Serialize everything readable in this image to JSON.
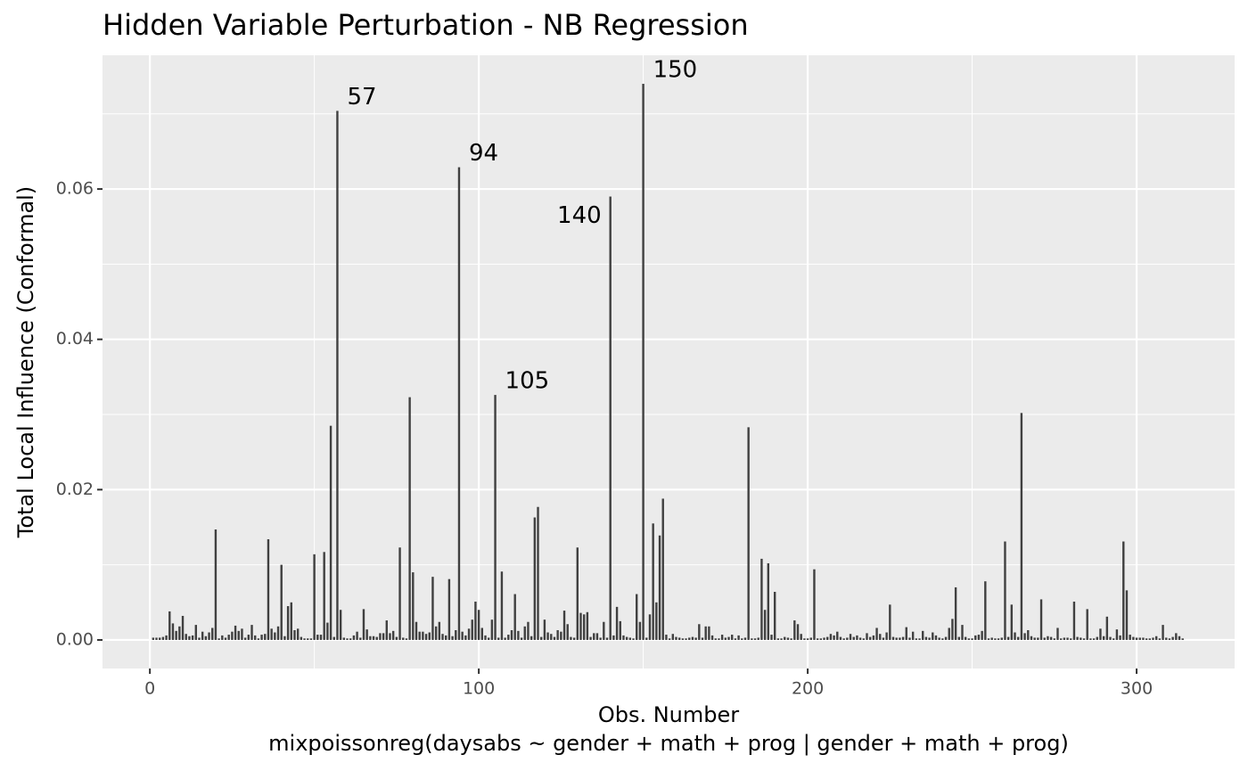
{
  "chart_data": {
    "type": "bar",
    "title": "Hidden Variable Perturbation - NB Regression",
    "xlabel": "Obs. Number",
    "caption": "mixpoissonreg(daysabs ~ gender + math + prog | gender + math + prog)",
    "ylabel": "Total Local Influence (Conformal)",
    "color": "#404040",
    "grid": true,
    "x": [
      1,
      2,
      3,
      4,
      5,
      6,
      7,
      8,
      9,
      10,
      11,
      12,
      13,
      14,
      15,
      16,
      17,
      18,
      19,
      20,
      21,
      22,
      23,
      24,
      25,
      26,
      27,
      28,
      29,
      30,
      31,
      32,
      33,
      34,
      35,
      36,
      37,
      38,
      39,
      40,
      41,
      42,
      43,
      44,
      45,
      46,
      47,
      48,
      49,
      50,
      51,
      52,
      53,
      54,
      55,
      56,
      57,
      58,
      59,
      60,
      61,
      62,
      63,
      64,
      65,
      66,
      67,
      68,
      69,
      70,
      71,
      72,
      73,
      74,
      75,
      76,
      77,
      78,
      79,
      80,
      81,
      82,
      83,
      84,
      85,
      86,
      87,
      88,
      89,
      90,
      91,
      92,
      93,
      94,
      95,
      96,
      97,
      98,
      99,
      100,
      101,
      102,
      103,
      104,
      105,
      106,
      107,
      108,
      109,
      110,
      111,
      112,
      113,
      114,
      115,
      116,
      117,
      118,
      119,
      120,
      121,
      122,
      123,
      124,
      125,
      126,
      127,
      128,
      129,
      130,
      131,
      132,
      133,
      134,
      135,
      136,
      137,
      138,
      139,
      140,
      141,
      142,
      143,
      144,
      145,
      146,
      147,
      148,
      149,
      150,
      151,
      152,
      153,
      154,
      155,
      156,
      157,
      158,
      159,
      160,
      161,
      162,
      163,
      164,
      165,
      166,
      167,
      168,
      169,
      170,
      171,
      172,
      173,
      174,
      175,
      176,
      177,
      178,
      179,
      180,
      181,
      182,
      183,
      184,
      185,
      186,
      187,
      188,
      189,
      190,
      191,
      192,
      193,
      194,
      195,
      196,
      197,
      198,
      199,
      200,
      201,
      202,
      203,
      204,
      205,
      206,
      207,
      208,
      209,
      210,
      211,
      212,
      213,
      214,
      215,
      216,
      217,
      218,
      219,
      220,
      221,
      222,
      223,
      224,
      225,
      226,
      227,
      228,
      229,
      230,
      231,
      232,
      233,
      234,
      235,
      236,
      237,
      238,
      239,
      240,
      241,
      242,
      243,
      244,
      245,
      246,
      247,
      248,
      249,
      250,
      251,
      252,
      253,
      254,
      255,
      256,
      257,
      258,
      259,
      260,
      261,
      262,
      263,
      264,
      265,
      266,
      267,
      268,
      269,
      270,
      271,
      272,
      273,
      274,
      275,
      276,
      277,
      278,
      279,
      280,
      281,
      282,
      283,
      284,
      285,
      286,
      287,
      288,
      289,
      290,
      291,
      292,
      293,
      294,
      295,
      296,
      297,
      298,
      299,
      300,
      301,
      302,
      303,
      304,
      305,
      306,
      307,
      308,
      309,
      310,
      311,
      312,
      313,
      314
    ],
    "values": [
      0.0003,
      0.0003,
      0.0003,
      0.0004,
      0.0006,
      0.0038,
      0.0022,
      0.0012,
      0.0018,
      0.0032,
      0.0008,
      0.0005,
      0.0006,
      0.002,
      0.0003,
      0.0011,
      0.0005,
      0.001,
      0.0016,
      0.0147,
      0.0002,
      0.0006,
      0.0003,
      0.0007,
      0.0011,
      0.0019,
      0.0012,
      0.0015,
      0.0003,
      0.0007,
      0.002,
      0.0006,
      0.0002,
      0.0007,
      0.0008,
      0.0134,
      0.0015,
      0.001,
      0.0018,
      0.01,
      0.0005,
      0.0045,
      0.005,
      0.0013,
      0.0015,
      0.0004,
      0.0002,
      0.0002,
      0.0002,
      0.0114,
      0.0007,
      0.0007,
      0.0117,
      0.0023,
      0.0285,
      0.0004,
      0.0704,
      0.004,
      0.0003,
      0.0002,
      0.0002,
      0.0006,
      0.0011,
      0.0003,
      0.0041,
      0.0014,
      0.0005,
      0.0005,
      0.0004,
      0.0009,
      0.0009,
      0.0026,
      0.0009,
      0.0012,
      0.0004,
      0.0123,
      0.0003,
      0.0002,
      0.0323,
      0.009,
      0.0024,
      0.0011,
      0.0011,
      0.0008,
      0.001,
      0.0084,
      0.0018,
      0.0024,
      0.0008,
      0.0006,
      0.0081,
      0.0005,
      0.0013,
      0.0629,
      0.0011,
      0.0006,
      0.0015,
      0.0027,
      0.0051,
      0.004,
      0.0016,
      0.0006,
      0.0003,
      0.0027,
      0.0326,
      0.0003,
      0.0091,
      0.0003,
      0.0007,
      0.0013,
      0.0061,
      0.0012,
      0.0003,
      0.0018,
      0.0024,
      0.0005,
      0.0163,
      0.0177,
      0.0004,
      0.0027,
      0.001,
      0.0008,
      0.0004,
      0.0013,
      0.0011,
      0.0039,
      0.0021,
      0.0004,
      0.0003,
      0.0123,
      0.0036,
      0.0034,
      0.0037,
      0.0004,
      0.0009,
      0.0009,
      0.0003,
      0.0024,
      0.0003,
      0.059,
      0.0006,
      0.0044,
      0.0025,
      0.0006,
      0.0004,
      0.0003,
      0.0002,
      0.0061,
      0.0024,
      0.074,
      0.0003,
      0.0034,
      0.0155,
      0.005,
      0.0139,
      0.0188,
      0.0007,
      0.0002,
      0.0008,
      0.0004,
      0.0003,
      0.0002,
      0.0002,
      0.0003,
      0.0004,
      0.0003,
      0.0021,
      0.0003,
      0.0018,
      0.0018,
      0.0006,
      0.0002,
      0.0002,
      0.0007,
      0.0003,
      0.0004,
      0.0007,
      0.0002,
      0.0006,
      0.0002,
      0.0003,
      0.0283,
      0.0002,
      0.0002,
      0.0003,
      0.0108,
      0.004,
      0.0102,
      0.0007,
      0.0064,
      0.0002,
      0.0002,
      0.0004,
      0.0003,
      0.0002,
      0.0026,
      0.0021,
      0.0008,
      0.0002,
      0.0002,
      0.0003,
      0.0094,
      0.0002,
      0.0002,
      0.0003,
      0.0004,
      0.0008,
      0.0006,
      0.0011,
      0.0004,
      0.0002,
      0.0003,
      0.0008,
      0.0004,
      0.0006,
      0.0003,
      0.0002,
      0.0009,
      0.0004,
      0.0006,
      0.0016,
      0.0008,
      0.0003,
      0.001,
      0.0047,
      0.0004,
      0.0003,
      0.0003,
      0.0004,
      0.0017,
      0.0003,
      0.0011,
      0.0002,
      0.0002,
      0.0012,
      0.0004,
      0.0003,
      0.001,
      0.0006,
      0.0003,
      0.0002,
      0.0004,
      0.0016,
      0.0028,
      0.007,
      0.0004,
      0.002,
      0.0004,
      0.0002,
      0.0002,
      0.0006,
      0.0007,
      0.0012,
      0.0078,
      0.0002,
      0.0003,
      0.0002,
      0.0002,
      0.0003,
      0.0131,
      0.0004,
      0.0047,
      0.001,
      0.0004,
      0.0302,
      0.0009,
      0.0013,
      0.0005,
      0.0003,
      0.0003,
      0.0054,
      0.0003,
      0.0005,
      0.0004,
      0.0002,
      0.0016,
      0.0002,
      0.0003,
      0.0003,
      0.0002,
      0.0051,
      0.0004,
      0.0003,
      0.0002,
      0.0041,
      0.0002,
      0.0002,
      0.0004,
      0.0015,
      0.0005,
      0.0031,
      0.0004,
      0.0002,
      0.0014,
      0.0006,
      0.0131,
      0.0066,
      0.0007,
      0.0004,
      0.0003,
      0.0003,
      0.0003,
      0.0002,
      0.0002,
      0.0003,
      0.0005,
      0.0002,
      0.002,
      0.0003,
      0.0002,
      0.0004,
      0.0009,
      0.0005,
      0.0002
    ],
    "annotations": [
      {
        "text": "57",
        "x": 57
      },
      {
        "text": "94",
        "x": 94
      },
      {
        "text": "105",
        "x": 105
      },
      {
        "text": "140",
        "x": 140
      },
      {
        "text": "150",
        "x": 150
      }
    ],
    "xlim": [
      -14.4,
      329.8
    ],
    "xticks": [
      0,
      100,
      200,
      300
    ],
    "xminorticks": [
      50,
      150,
      250
    ],
    "ylim": [
      -0.0038,
      0.0778
    ],
    "yticks": [
      {
        "value": 0,
        "label": "0.00"
      },
      {
        "value": 0.02,
        "label": "0.02"
      },
      {
        "value": 0.04,
        "label": "0.04"
      },
      {
        "value": 0.06,
        "label": "0.06"
      }
    ],
    "yminorticks": [
      0.01,
      0.03,
      0.05,
      0.07
    ]
  }
}
